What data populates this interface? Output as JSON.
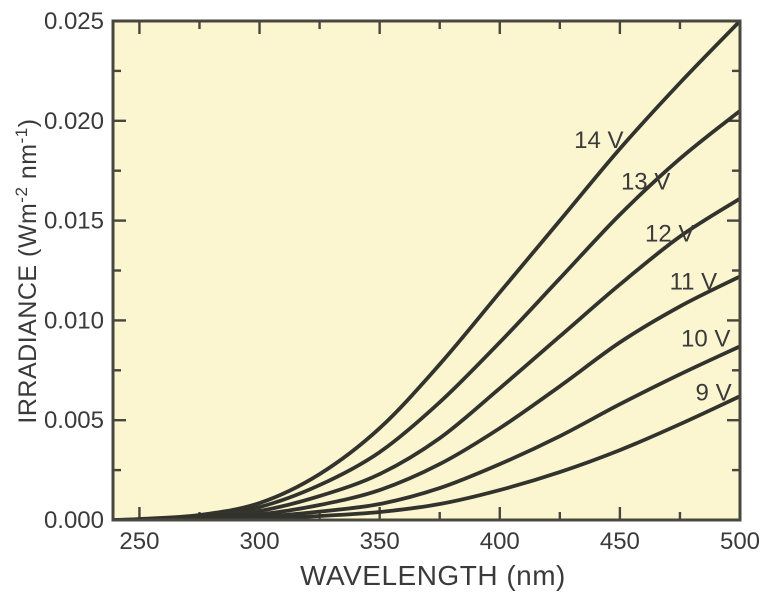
{
  "figure": {
    "background": "#ffffff",
    "plot_background": "#fbf6d0",
    "frame_color": "#47473f",
    "curve_color": "#33332d",
    "text_color": "#3a3a3a"
  },
  "chart_data": {
    "type": "line",
    "title": "",
    "xlabel": "WAVELENGTH (nm)",
    "ylabel": "IRRADIANCE (Wm⁻² nm⁻¹)",
    "ylabel_parts": [
      {
        "text": "IRRADIANCE (Wm",
        "sup": false
      },
      {
        "text": "-2",
        "sup": true
      },
      {
        "text": " nm",
        "sup": false
      },
      {
        "text": "-1",
        "sup": true
      },
      {
        "text": ")",
        "sup": false
      }
    ],
    "xlim": [
      239,
      500
    ],
    "ylim": [
      0,
      0.025
    ],
    "grid": false,
    "legend": "inline curve labels",
    "x_ticks_major": [
      250,
      300,
      350,
      400,
      450,
      500
    ],
    "x_tick_labels": [
      "250",
      "300",
      "350",
      "400",
      "450",
      "500"
    ],
    "x_ticks_minor": [
      275,
      325,
      375,
      425,
      475
    ],
    "y_ticks_major": [
      0,
      0.005,
      0.01,
      0.015,
      0.02,
      0.025
    ],
    "y_tick_labels": [
      "0.000",
      "0.005",
      "0.010",
      "0.015",
      "0.020",
      "0.025"
    ],
    "y_ticks_minor": [
      0.0025,
      0.0075,
      0.0125,
      0.0175,
      0.0225
    ],
    "x": [
      239,
      250,
      275,
      300,
      325,
      350,
      375,
      400,
      425,
      450,
      475,
      500
    ],
    "series": [
      {
        "name": "14 V",
        "label": "14 V",
        "label_anchor": {
          "x": 451.5,
          "y": 0.0191
        },
        "values": [
          0,
          5e-05,
          0.00025,
          0.00085,
          0.0023,
          0.0046,
          0.0078,
          0.0114,
          0.015,
          0.0186,
          0.0219,
          0.025
        ]
      },
      {
        "name": "13 V",
        "label": "13 V",
        "label_anchor": {
          "x": 471,
          "y": 0.017
        },
        "values": [
          0,
          3e-05,
          0.00018,
          0.00065,
          0.00175,
          0.0034,
          0.0059,
          0.0089,
          0.0121,
          0.0153,
          0.0181,
          0.0205
        ]
      },
      {
        "name": "12 V",
        "label": "12 V",
        "label_anchor": {
          "x": 481,
          "y": 0.0144
        },
        "values": [
          0,
          2e-05,
          0.00012,
          0.00045,
          0.0012,
          0.0023,
          0.0041,
          0.0066,
          0.0092,
          0.0118,
          0.0142,
          0.0161
        ]
      },
      {
        "name": "11 V",
        "label": "11 V",
        "label_anchor": {
          "x": 490.5,
          "y": 0.012
        },
        "values": [
          0,
          1e-05,
          8e-05,
          0.00028,
          0.00075,
          0.0015,
          0.0028,
          0.0046,
          0.0067,
          0.0089,
          0.0107,
          0.0122
        ]
      },
      {
        "name": "10 V",
        "label": "10 V",
        "label_anchor": {
          "x": 496,
          "y": 0.00915
        },
        "values": [
          0,
          1e-05,
          5e-05,
          0.00016,
          0.00042,
          0.0008,
          0.0016,
          0.0028,
          0.0042,
          0.0058,
          0.0073,
          0.0087
        ]
      },
      {
        "name": "9 V",
        "label": "9 V",
        "label_anchor": {
          "x": 496.5,
          "y": 0.00643
        },
        "values": [
          0,
          0,
          2e-05,
          8e-05,
          0.0002,
          0.0004,
          0.0008,
          0.0015,
          0.0024,
          0.0035,
          0.0048,
          0.0062
        ]
      }
    ]
  }
}
